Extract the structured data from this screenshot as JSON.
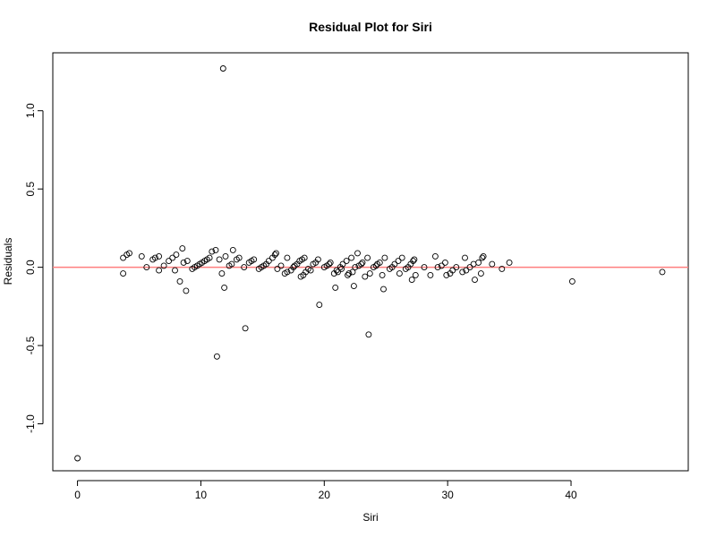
{
  "chart_data": {
    "type": "scatter",
    "title": "Residual Plot for Siri",
    "xlabel": "Siri",
    "ylabel": "Residuals",
    "xlim": [
      -2,
      49.5
    ],
    "ylim": [
      -1.3,
      1.37
    ],
    "xticks": [
      0,
      10,
      20,
      30,
      40
    ],
    "yticks": [
      -1.0,
      -0.5,
      0.0,
      0.5,
      1.0
    ],
    "xtick_labels": [
      "0",
      "10",
      "20",
      "30",
      "40"
    ],
    "ytick_labels": [
      "-1.0",
      "-0.5",
      "0.0",
      "0.5",
      "1.0"
    ],
    "grid": false,
    "reference_line": {
      "y": 0,
      "color": "#ff7f7f"
    },
    "point_color": "#000000",
    "points": [
      {
        "x": 0.0,
        "y": -1.22
      },
      {
        "x": 3.7,
        "y": 0.06
      },
      {
        "x": 3.7,
        "y": -0.04
      },
      {
        "x": 4.0,
        "y": 0.08
      },
      {
        "x": 4.2,
        "y": 0.09
      },
      {
        "x": 5.2,
        "y": 0.07
      },
      {
        "x": 5.6,
        "y": 0.0
      },
      {
        "x": 6.1,
        "y": 0.05
      },
      {
        "x": 6.3,
        "y": 0.06
      },
      {
        "x": 6.6,
        "y": 0.07
      },
      {
        "x": 6.6,
        "y": -0.02
      },
      {
        "x": 7.0,
        "y": 0.01
      },
      {
        "x": 7.4,
        "y": 0.04
      },
      {
        "x": 7.7,
        "y": 0.06
      },
      {
        "x": 7.9,
        "y": -0.02
      },
      {
        "x": 8.0,
        "y": 0.08
      },
      {
        "x": 8.3,
        "y": -0.09
      },
      {
        "x": 8.5,
        "y": 0.12
      },
      {
        "x": 8.6,
        "y": 0.03
      },
      {
        "x": 8.9,
        "y": 0.04
      },
      {
        "x": 8.8,
        "y": -0.15
      },
      {
        "x": 9.3,
        "y": -0.01
      },
      {
        "x": 9.5,
        "y": 0.0
      },
      {
        "x": 9.7,
        "y": 0.01
      },
      {
        "x": 9.9,
        "y": 0.02
      },
      {
        "x": 10.1,
        "y": 0.03
      },
      {
        "x": 10.3,
        "y": 0.04
      },
      {
        "x": 10.5,
        "y": 0.05
      },
      {
        "x": 10.7,
        "y": 0.06
      },
      {
        "x": 10.9,
        "y": 0.1
      },
      {
        "x": 11.2,
        "y": 0.11
      },
      {
        "x": 11.3,
        "y": -0.57
      },
      {
        "x": 11.5,
        "y": 0.05
      },
      {
        "x": 11.7,
        "y": -0.04
      },
      {
        "x": 11.8,
        "y": 1.27
      },
      {
        "x": 11.9,
        "y": -0.13
      },
      {
        "x": 12.0,
        "y": 0.07
      },
      {
        "x": 12.3,
        "y": 0.01
      },
      {
        "x": 12.5,
        "y": 0.02
      },
      {
        "x": 12.6,
        "y": 0.11
      },
      {
        "x": 12.9,
        "y": 0.05
      },
      {
        "x": 13.1,
        "y": 0.06
      },
      {
        "x": 13.5,
        "y": 0.0
      },
      {
        "x": 13.6,
        "y": -0.39
      },
      {
        "x": 13.9,
        "y": 0.03
      },
      {
        "x": 14.1,
        "y": 0.04
      },
      {
        "x": 14.3,
        "y": 0.05
      },
      {
        "x": 14.7,
        "y": -0.01
      },
      {
        "x": 14.9,
        "y": 0.0
      },
      {
        "x": 15.1,
        "y": 0.01
      },
      {
        "x": 15.3,
        "y": 0.02
      },
      {
        "x": 15.5,
        "y": 0.04
      },
      {
        "x": 15.8,
        "y": 0.06
      },
      {
        "x": 16.0,
        "y": 0.08
      },
      {
        "x": 16.1,
        "y": 0.09
      },
      {
        "x": 16.2,
        "y": -0.01
      },
      {
        "x": 16.5,
        "y": 0.01
      },
      {
        "x": 16.8,
        "y": -0.04
      },
      {
        "x": 17.0,
        "y": -0.03
      },
      {
        "x": 17.0,
        "y": 0.06
      },
      {
        "x": 17.3,
        "y": -0.02
      },
      {
        "x": 17.5,
        "y": 0.0
      },
      {
        "x": 17.6,
        "y": 0.01
      },
      {
        "x": 17.8,
        "y": 0.02
      },
      {
        "x": 18.0,
        "y": 0.04
      },
      {
        "x": 18.1,
        "y": -0.06
      },
      {
        "x": 18.2,
        "y": 0.05
      },
      {
        "x": 18.3,
        "y": -0.05
      },
      {
        "x": 18.4,
        "y": 0.06
      },
      {
        "x": 18.5,
        "y": -0.03
      },
      {
        "x": 18.7,
        "y": -0.01
      },
      {
        "x": 18.9,
        "y": -0.02
      },
      {
        "x": 19.1,
        "y": 0.02
      },
      {
        "x": 19.3,
        "y": 0.03
      },
      {
        "x": 19.5,
        "y": 0.05
      },
      {
        "x": 19.6,
        "y": -0.24
      },
      {
        "x": 20.0,
        "y": 0.0
      },
      {
        "x": 20.2,
        "y": 0.01
      },
      {
        "x": 20.4,
        "y": 0.02
      },
      {
        "x": 20.5,
        "y": 0.03
      },
      {
        "x": 20.8,
        "y": -0.04
      },
      {
        "x": 20.9,
        "y": -0.13
      },
      {
        "x": 21.0,
        "y": -0.02
      },
      {
        "x": 21.1,
        "y": -0.03
      },
      {
        "x": 21.3,
        "y": 0.0
      },
      {
        "x": 21.4,
        "y": -0.01
      },
      {
        "x": 21.5,
        "y": 0.02
      },
      {
        "x": 21.8,
        "y": 0.04
      },
      {
        "x": 21.9,
        "y": -0.05
      },
      {
        "x": 22.0,
        "y": -0.04
      },
      {
        "x": 22.2,
        "y": 0.06
      },
      {
        "x": 22.3,
        "y": -0.03
      },
      {
        "x": 22.4,
        "y": -0.12
      },
      {
        "x": 22.5,
        "y": 0.0
      },
      {
        "x": 22.7,
        "y": 0.09
      },
      {
        "x": 22.8,
        "y": 0.01
      },
      {
        "x": 23.0,
        "y": 0.02
      },
      {
        "x": 23.1,
        "y": 0.03
      },
      {
        "x": 23.3,
        "y": -0.06
      },
      {
        "x": 23.5,
        "y": 0.06
      },
      {
        "x": 23.6,
        "y": -0.43
      },
      {
        "x": 23.7,
        "y": -0.04
      },
      {
        "x": 24.0,
        "y": 0.0
      },
      {
        "x": 24.2,
        "y": 0.01
      },
      {
        "x": 24.3,
        "y": 0.02
      },
      {
        "x": 24.5,
        "y": 0.03
      },
      {
        "x": 24.7,
        "y": -0.05
      },
      {
        "x": 24.8,
        "y": -0.14
      },
      {
        "x": 24.9,
        "y": 0.06
      },
      {
        "x": 25.3,
        "y": -0.01
      },
      {
        "x": 25.5,
        "y": 0.0
      },
      {
        "x": 25.7,
        "y": 0.02
      },
      {
        "x": 26.0,
        "y": 0.04
      },
      {
        "x": 26.1,
        "y": -0.04
      },
      {
        "x": 26.3,
        "y": 0.06
      },
      {
        "x": 26.6,
        "y": -0.01
      },
      {
        "x": 26.8,
        "y": 0.0
      },
      {
        "x": 27.0,
        "y": 0.02
      },
      {
        "x": 27.1,
        "y": -0.08
      },
      {
        "x": 27.2,
        "y": 0.04
      },
      {
        "x": 27.4,
        "y": -0.05
      },
      {
        "x": 27.3,
        "y": 0.05
      },
      {
        "x": 28.1,
        "y": 0.0
      },
      {
        "x": 28.6,
        "y": -0.05
      },
      {
        "x": 29.0,
        "y": 0.07
      },
      {
        "x": 29.2,
        "y": 0.0
      },
      {
        "x": 29.5,
        "y": 0.01
      },
      {
        "x": 29.8,
        "y": 0.03
      },
      {
        "x": 29.9,
        "y": -0.05
      },
      {
        "x": 30.2,
        "y": -0.04
      },
      {
        "x": 30.4,
        "y": -0.02
      },
      {
        "x": 30.7,
        "y": 0.0
      },
      {
        "x": 31.2,
        "y": -0.03
      },
      {
        "x": 31.4,
        "y": 0.06
      },
      {
        "x": 31.5,
        "y": -0.02
      },
      {
        "x": 31.8,
        "y": 0.0
      },
      {
        "x": 32.1,
        "y": 0.02
      },
      {
        "x": 32.2,
        "y": -0.08
      },
      {
        "x": 32.5,
        "y": 0.03
      },
      {
        "x": 32.7,
        "y": -0.04
      },
      {
        "x": 32.8,
        "y": 0.06
      },
      {
        "x": 32.9,
        "y": 0.07
      },
      {
        "x": 33.6,
        "y": 0.02
      },
      {
        "x": 34.4,
        "y": -0.01
      },
      {
        "x": 35.0,
        "y": 0.03
      },
      {
        "x": 40.1,
        "y": -0.09
      },
      {
        "x": 47.4,
        "y": -0.03
      }
    ]
  }
}
